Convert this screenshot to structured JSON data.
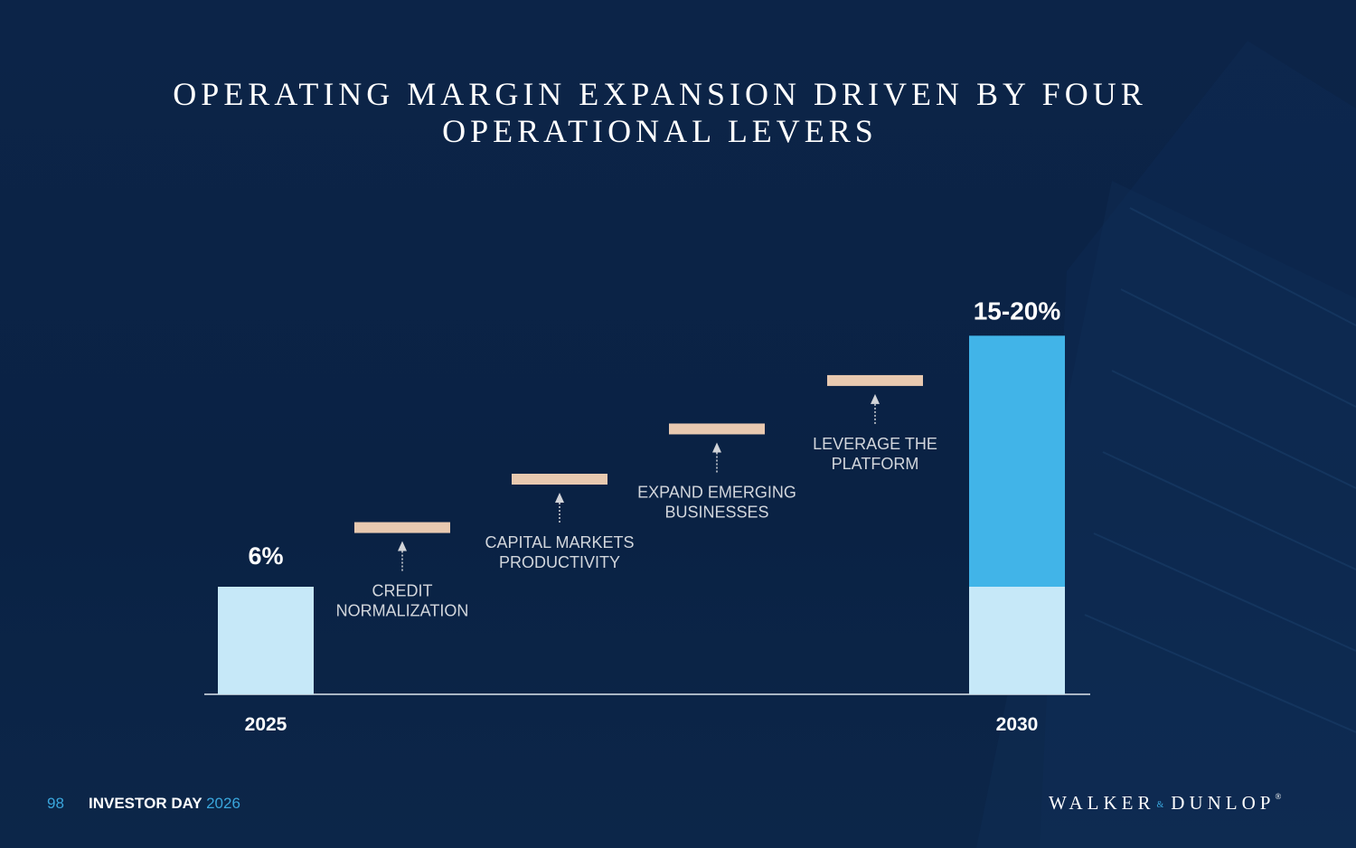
{
  "title": {
    "line1": "OPERATING MARGIN EXPANSION DRIVEN BY FOUR",
    "line2": "OPERATIONAL LEVERS"
  },
  "chart_data": {
    "type": "bar",
    "title": "OPERATING MARGIN EXPANSION DRIVEN BY FOUR OPERATIONAL LEVERS",
    "categories": [
      "2025",
      "CREDIT NORMALIZATION",
      "CAPITAL MARKETS PRODUCTIVITY",
      "EXPAND EMERGING BUSINESSES",
      "LEVERAGE THE PLATFORM",
      "2030"
    ],
    "start": {
      "year": "2025",
      "value": 6,
      "label": "6%"
    },
    "levers": [
      {
        "line1": "CREDIT",
        "line2": "NORMALIZATION",
        "cumulative": 9.3
      },
      {
        "line1": "CAPITAL MARKETS",
        "line2": "PRODUCTIVITY",
        "cumulative": 12.0
      },
      {
        "line1": "EXPAND EMERGING",
        "line2": "BUSINESSES",
        "cumulative": 14.8
      },
      {
        "line1": "LEVERAGE THE",
        "line2": "PLATFORM",
        "cumulative": 17.5
      }
    ],
    "end": {
      "year": "2030",
      "low": 15,
      "high": 20,
      "base": 6,
      "label": "15-20%"
    },
    "ylim": [
      0,
      24
    ],
    "colors": {
      "base_bar": "#c6e8f8",
      "end_bar": "#41b4e8",
      "lever_step": "#e8c9b0",
      "arrow": "#d2d4d8",
      "axis": "#dfe6ee",
      "lever_text": "#d2d6dc"
    }
  },
  "footer": {
    "page_number": "98",
    "event": "INVESTOR DAY",
    "year": "2026",
    "logo_left": "WALKER",
    "logo_amp": "&",
    "logo_right": "DUNLOP",
    "logo_reg": "®"
  }
}
